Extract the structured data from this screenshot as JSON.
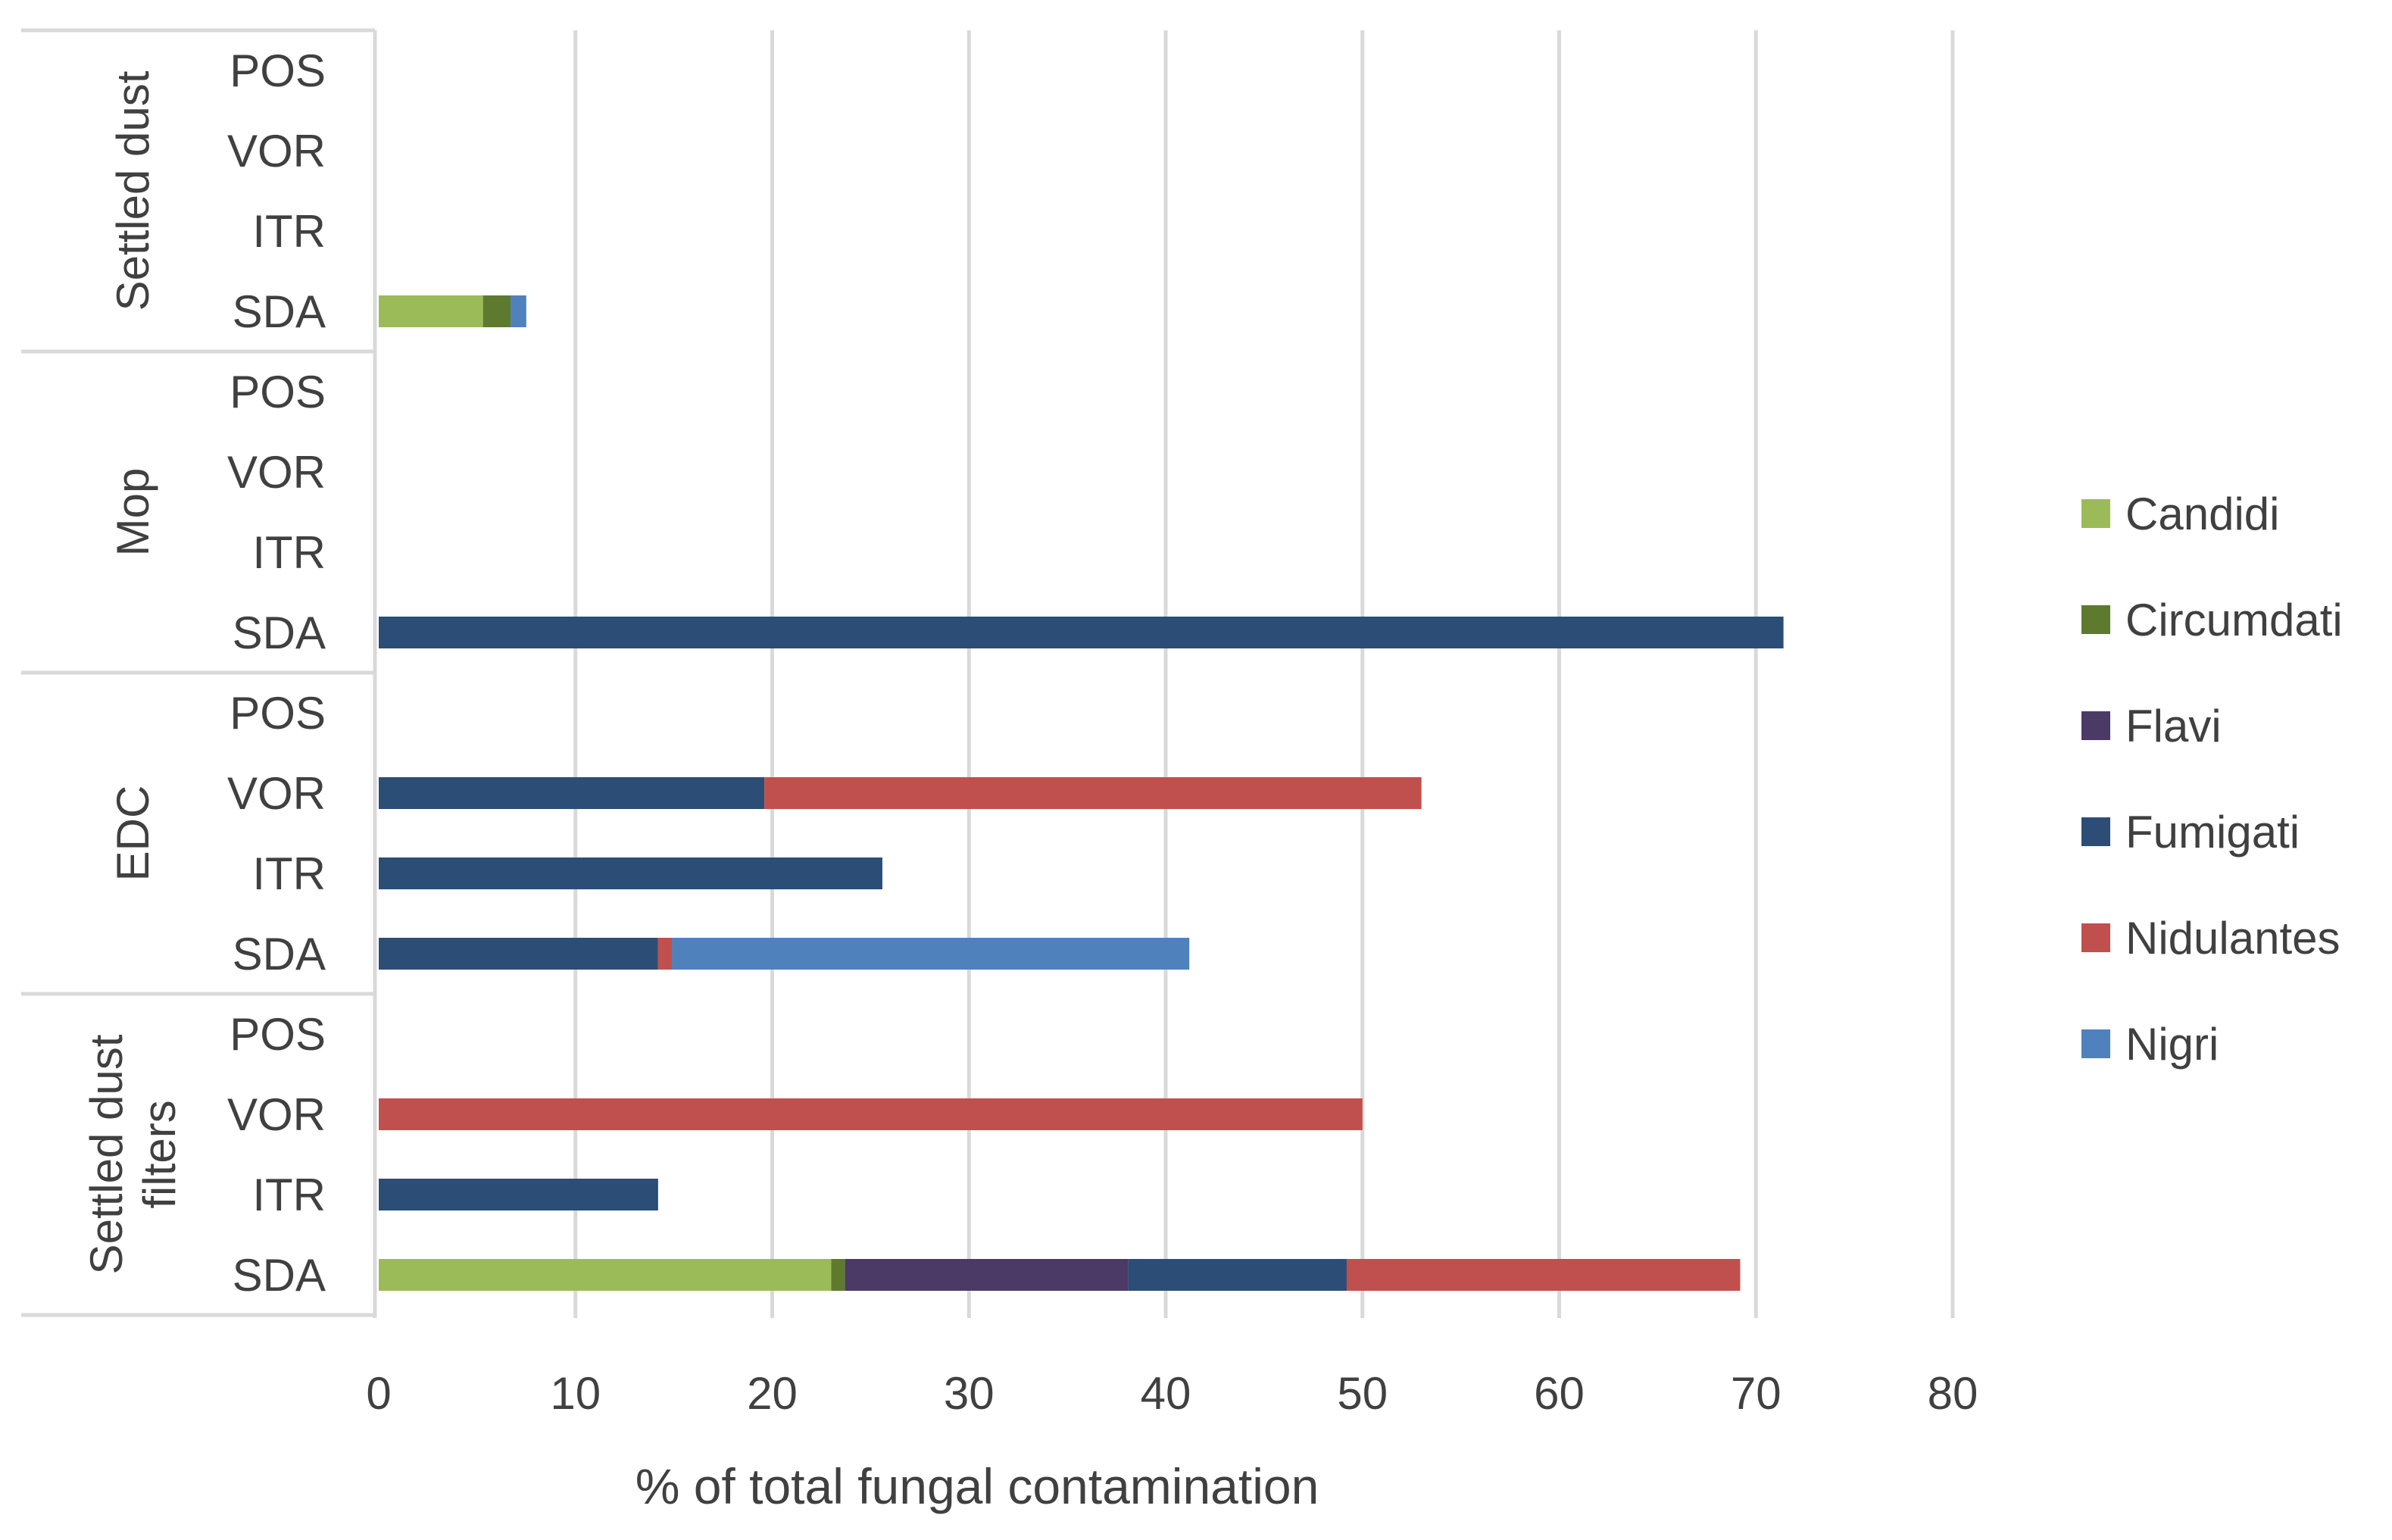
{
  "chart_data": {
    "type": "bar",
    "orientation": "horizontal",
    "stacked": true,
    "title": "",
    "xlabel": "% of total fungal contamination",
    "ylabel": "",
    "xlim": [
      0,
      80
    ],
    "xticks": [
      "0",
      "10",
      "20",
      "30",
      "40",
      "50",
      "60",
      "70",
      "80"
    ],
    "grid": true,
    "legend_position": "right",
    "groups": [
      {
        "name": "Settled dust",
        "lines": [
          "Settled dust"
        ],
        "categories": [
          "POS",
          "VOR",
          "ITR",
          "SDA"
        ]
      },
      {
        "name": "Mop",
        "lines": [
          "Mop"
        ],
        "categories": [
          "POS",
          "VOR",
          "ITR",
          "SDA"
        ]
      },
      {
        "name": "EDC",
        "lines": [
          "EDC"
        ],
        "categories": [
          "POS",
          "VOR",
          "ITR",
          "SDA"
        ]
      },
      {
        "name": "Settled dust filters",
        "lines": [
          "Settled dust",
          "filters"
        ],
        "categories": [
          "POS",
          "VOR",
          "ITR",
          "SDA"
        ]
      }
    ],
    "series": [
      {
        "name": "Candidi",
        "color": "#9BBB59",
        "values": [
          0,
          0,
          0,
          5.3,
          0,
          0,
          0,
          0,
          0,
          0,
          0,
          0,
          0,
          0,
          0,
          23.0
        ]
      },
      {
        "name": "Circumdati",
        "color": "#5E7A2E",
        "values": [
          0,
          0,
          0,
          1.4,
          0,
          0,
          0,
          0,
          0,
          0,
          0,
          0,
          0,
          0,
          0,
          0.7
        ]
      },
      {
        "name": "Flavi",
        "color": "#4B3A65",
        "values": [
          0,
          0,
          0,
          0,
          0,
          0,
          0,
          0,
          0,
          0,
          0,
          0,
          0,
          0,
          0,
          14.4
        ]
      },
      {
        "name": "Fumigati",
        "color": "#2C4D75",
        "values": [
          0,
          0,
          0,
          0,
          0,
          0,
          0,
          71.4,
          0,
          19.6,
          25.6,
          14.2,
          0,
          0,
          14.2,
          11.1
        ]
      },
      {
        "name": "Nidulantes",
        "color": "#C0504D",
        "values": [
          0,
          0,
          0,
          0,
          0,
          0,
          0,
          0,
          0,
          33.4,
          0,
          0.7,
          0,
          50.0,
          0,
          20.0
        ]
      },
      {
        "name": "Nigri",
        "color": "#4F81BD",
        "values": [
          0,
          0,
          0,
          0.8,
          0,
          0,
          0,
          0,
          0,
          0,
          0,
          26.3,
          0,
          0,
          0,
          0
        ]
      }
    ]
  }
}
